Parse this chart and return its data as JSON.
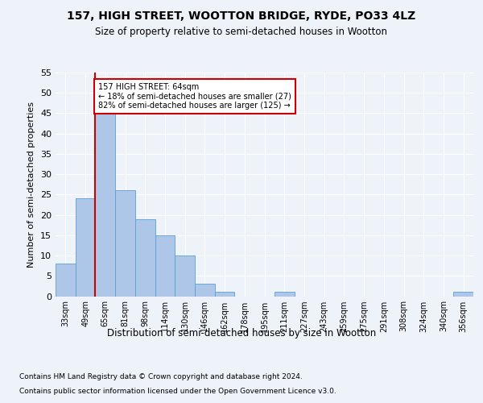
{
  "title": "157, HIGH STREET, WOOTTON BRIDGE, RYDE, PO33 4LZ",
  "subtitle": "Size of property relative to semi-detached houses in Wootton",
  "xlabel": "Distribution of semi-detached houses by size in Wootton",
  "ylabel": "Number of semi-detached properties",
  "categories": [
    "33sqm",
    "49sqm",
    "65sqm",
    "81sqm",
    "98sqm",
    "114sqm",
    "130sqm",
    "146sqm",
    "162sqm",
    "178sqm",
    "195sqm",
    "211sqm",
    "227sqm",
    "243sqm",
    "259sqm",
    "275sqm",
    "291sqm",
    "308sqm",
    "324sqm",
    "340sqm",
    "356sqm"
  ],
  "values": [
    8,
    24,
    46,
    26,
    19,
    15,
    10,
    3,
    1,
    0,
    0,
    1,
    0,
    0,
    0,
    0,
    0,
    0,
    0,
    0,
    1
  ],
  "bar_color": "#aec6e8",
  "bar_edge_color": "#5a9fd4",
  "red_line_bin_index": 2,
  "red_line_label": "157 HIGH STREET: 64sqm",
  "annotation_smaller": "← 18% of semi-detached houses are smaller (27)",
  "annotation_larger": "82% of semi-detached houses are larger (125) →",
  "ylim": [
    0,
    55
  ],
  "yticks": [
    0,
    5,
    10,
    15,
    20,
    25,
    30,
    35,
    40,
    45,
    50,
    55
  ],
  "footnote1": "Contains HM Land Registry data © Crown copyright and database right 2024.",
  "footnote2": "Contains public sector information licensed under the Open Government Licence v3.0.",
  "background_color": "#eef2f9",
  "grid_color": "#ffffff",
  "annotation_box_color": "#ffffff",
  "annotation_box_edge": "#cc0000",
  "red_line_color": "#cc0000"
}
